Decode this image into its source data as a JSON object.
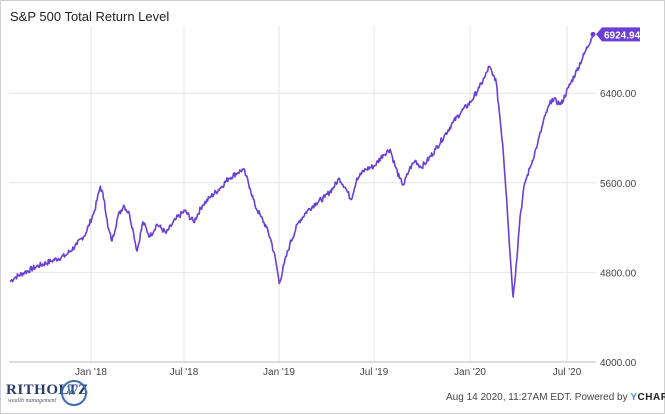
{
  "title": "S&P 500 Total Return Level",
  "footer": {
    "text": "Aug 14 2020, 11:27AM EDT. Powered by ",
    "brand_y": "Y",
    "brand_rest": "CHARTS"
  },
  "logo": {
    "name": "RITHOLTZ",
    "tagline": "wealth management"
  },
  "colors": {
    "line": "#6a3fd6",
    "grid": "#e6e6e6",
    "label_bg": "#6a3fd6"
  },
  "chart_data": {
    "type": "line",
    "title": "S&P 500 Total Return Level",
    "xlabel": "",
    "ylabel": "",
    "x_tick_labels": [
      "Jan '18",
      "Jul '18",
      "Jan '19",
      "Jul '19",
      "Jan '20",
      "Jul '20"
    ],
    "y_ticks": [
      4000,
      4800,
      5600,
      6400
    ],
    "y_tick_labels": [
      "4000.00",
      "4800.00",
      "5600.00",
      "6400.00"
    ],
    "ylim": [
      4000,
      7000
    ],
    "grid": true,
    "last_value": 6924.94,
    "last_value_label": "6924.94",
    "series": [
      {
        "values": [
          [
            0,
            4720
          ],
          [
            0.01,
            4760
          ],
          [
            0.025,
            4800
          ],
          [
            0.045,
            4850
          ],
          [
            0.07,
            4900
          ],
          [
            0.095,
            4950
          ],
          [
            0.115,
            5050
          ],
          [
            0.13,
            5150
          ],
          [
            0.145,
            5350
          ],
          [
            0.155,
            5570
          ],
          [
            0.162,
            5440
          ],
          [
            0.168,
            5200
          ],
          [
            0.175,
            5080
          ],
          [
            0.185,
            5300
          ],
          [
            0.195,
            5400
          ],
          [
            0.205,
            5320
          ],
          [
            0.212,
            5150
          ],
          [
            0.218,
            4990
          ],
          [
            0.228,
            5250
          ],
          [
            0.24,
            5120
          ],
          [
            0.252,
            5230
          ],
          [
            0.268,
            5150
          ],
          [
            0.285,
            5280
          ],
          [
            0.3,
            5350
          ],
          [
            0.315,
            5250
          ],
          [
            0.33,
            5400
          ],
          [
            0.345,
            5480
          ],
          [
            0.36,
            5550
          ],
          [
            0.375,
            5640
          ],
          [
            0.39,
            5690
          ],
          [
            0.4,
            5720
          ],
          [
            0.405,
            5660
          ],
          [
            0.412,
            5550
          ],
          [
            0.42,
            5400
          ],
          [
            0.43,
            5300
          ],
          [
            0.44,
            5200
          ],
          [
            0.448,
            5080
          ],
          [
            0.456,
            4900
          ],
          [
            0.462,
            4700
          ],
          [
            0.47,
            4870
          ],
          [
            0.48,
            5050
          ],
          [
            0.495,
            5250
          ],
          [
            0.51,
            5350
          ],
          [
            0.525,
            5420
          ],
          [
            0.54,
            5470
          ],
          [
            0.555,
            5560
          ],
          [
            0.565,
            5640
          ],
          [
            0.575,
            5560
          ],
          [
            0.585,
            5450
          ],
          [
            0.595,
            5640
          ],
          [
            0.61,
            5720
          ],
          [
            0.625,
            5750
          ],
          [
            0.64,
            5850
          ],
          [
            0.652,
            5900
          ],
          [
            0.66,
            5760
          ],
          [
            0.668,
            5640
          ],
          [
            0.675,
            5580
          ],
          [
            0.685,
            5720
          ],
          [
            0.695,
            5800
          ],
          [
            0.705,
            5740
          ],
          [
            0.715,
            5790
          ],
          [
            0.73,
            5900
          ],
          [
            0.745,
            6020
          ],
          [
            0.76,
            6140
          ],
          [
            0.775,
            6240
          ],
          [
            0.79,
            6320
          ],
          [
            0.805,
            6450
          ],
          [
            0.815,
            6550
          ],
          [
            0.822,
            6640
          ],
          [
            0.828,
            6560
          ],
          [
            0.833,
            6530
          ],
          [
            0.838,
            6300
          ],
          [
            0.845,
            5950
          ],
          [
            0.852,
            5450
          ],
          [
            0.858,
            4950
          ],
          [
            0.863,
            4580
          ],
          [
            0.868,
            4850
          ],
          [
            0.875,
            5300
          ],
          [
            0.883,
            5600
          ],
          [
            0.893,
            5750
          ],
          [
            0.905,
            5950
          ],
          [
            0.918,
            6200
          ],
          [
            0.93,
            6350
          ],
          [
            0.945,
            6300
          ],
          [
            0.958,
            6450
          ],
          [
            0.972,
            6600
          ],
          [
            0.985,
            6750
          ],
          [
            1.0,
            6924.94
          ]
        ]
      }
    ]
  }
}
